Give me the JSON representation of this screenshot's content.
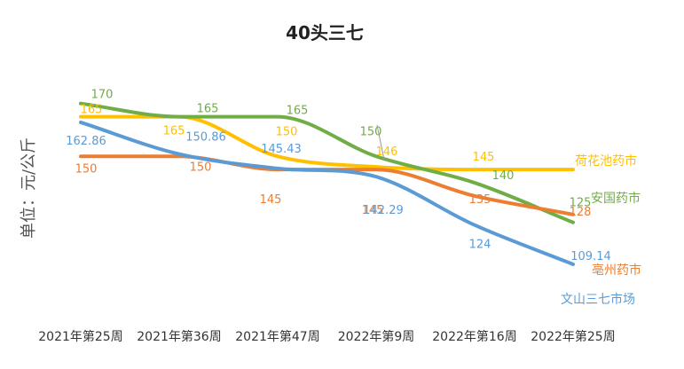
{
  "chart_data": {
    "type": "line",
    "title": "40头三七",
    "ylabel": "单位：元/公斤",
    "xlabel": "",
    "categories": [
      "2021年第25周",
      "2021年第36周",
      "2021年第47周",
      "2022年第9周",
      "2022年第16周",
      "2022年第25周"
    ],
    "ylim": [
      90,
      185
    ],
    "grid": false,
    "legend": "right, at series ends",
    "series": [
      {
        "name": "荷花池药市",
        "color": "#FFC000",
        "values": [
          165,
          165,
          150,
          146,
          145,
          null
        ],
        "labels": [
          "165",
          "165",
          "150",
          "146",
          "145",
          ""
        ]
      },
      {
        "name": "安国药市",
        "color": "#70AD47",
        "values": [
          170,
          165,
          165,
          150,
          140,
          125
        ],
        "labels": [
          "170",
          "165",
          "165",
          "150",
          "140",
          "125"
        ]
      },
      {
        "name": "亳州药市",
        "color": "#ED7D31",
        "values": [
          150,
          150,
          145,
          145,
          135,
          128
        ],
        "labels": [
          "150",
          "150",
          "145",
          "145",
          "135",
          "128"
        ]
      },
      {
        "name": "文山三七市场",
        "color": "#5B9BD5",
        "values": [
          162.86,
          150.86,
          145.43,
          142.29,
          124,
          109.14
        ],
        "labels": [
          "162.86",
          "150.86",
          "145.43",
          "142.29",
          "124",
          "109.14"
        ]
      }
    ]
  }
}
